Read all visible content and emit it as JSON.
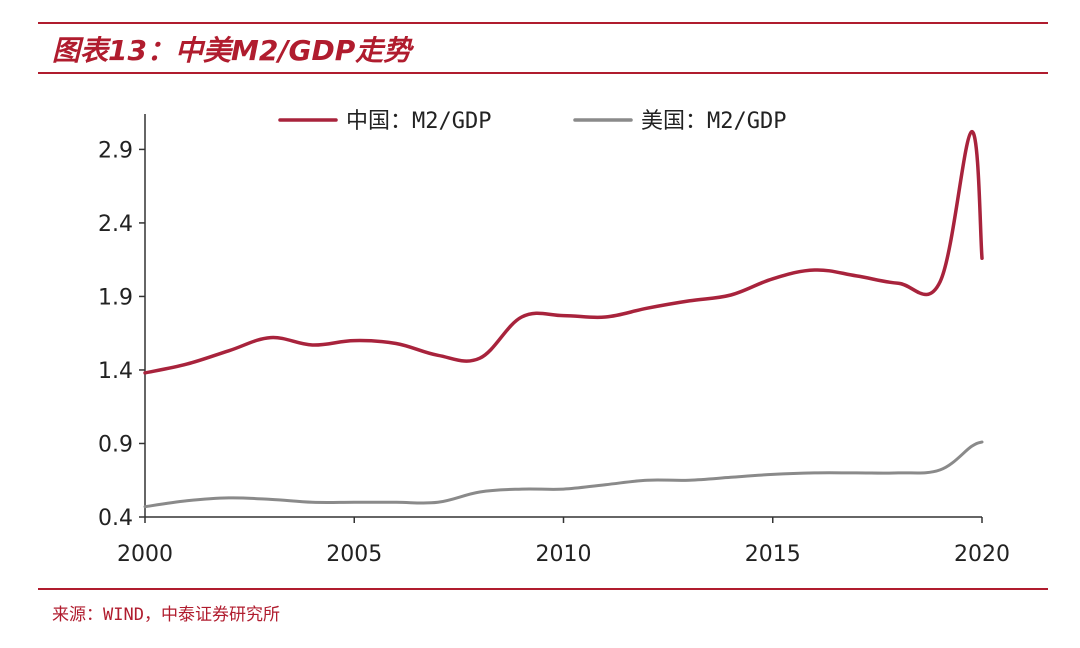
{
  "figure": {
    "title": "图表13：中美M2/GDP走势",
    "source": "来源：WIND，中泰证券研究所"
  },
  "colors": {
    "accent": "#b01c2e",
    "china": "#a8233c",
    "us": "#8a8a8a"
  },
  "chart_data": {
    "type": "line",
    "x_range": [
      2000,
      2020
    ],
    "ylim": [
      0.4,
      3.1
    ],
    "x_ticks": [
      2000,
      2005,
      2010,
      2015,
      2020
    ],
    "y_ticks": [
      0.4,
      0.9,
      1.4,
      1.9,
      2.4,
      2.9
    ],
    "y_tick_labels": [
      "0.4",
      "0.9",
      "1.4",
      "1.9",
      "2.4",
      "2.9"
    ],
    "x_tick_labels": [
      "2000",
      "2005",
      "2010",
      "2015",
      "2020"
    ],
    "grid": false,
    "legend_position": "top-center",
    "series": [
      {
        "name": "中国：M2/GDP",
        "color": "#a8233c",
        "x": [
          2000,
          2001,
          2002,
          2003,
          2004,
          2005,
          2006,
          2007,
          2008,
          2009,
          2010,
          2011,
          2012,
          2013,
          2014,
          2015,
          2016,
          2017,
          2018,
          2019,
          2019.75,
          2020
        ],
        "y": [
          1.38,
          1.44,
          1.53,
          1.62,
          1.57,
          1.6,
          1.58,
          1.5,
          1.48,
          1.76,
          1.77,
          1.76,
          1.82,
          1.87,
          1.91,
          2.02,
          2.08,
          2.04,
          1.99,
          2.0,
          3.02,
          2.16
        ]
      },
      {
        "name": "美国：M2/GDP",
        "color": "#8a8a8a",
        "x": [
          2000,
          2001,
          2002,
          2003,
          2004,
          2005,
          2006,
          2007,
          2008,
          2009,
          2010,
          2011,
          2012,
          2013,
          2014,
          2015,
          2016,
          2017,
          2018,
          2019,
          2019.75,
          2020
        ],
        "y": [
          0.47,
          0.51,
          0.53,
          0.52,
          0.5,
          0.5,
          0.5,
          0.5,
          0.57,
          0.59,
          0.59,
          0.62,
          0.65,
          0.65,
          0.67,
          0.69,
          0.7,
          0.7,
          0.7,
          0.72,
          0.88,
          0.91
        ]
      }
    ]
  }
}
